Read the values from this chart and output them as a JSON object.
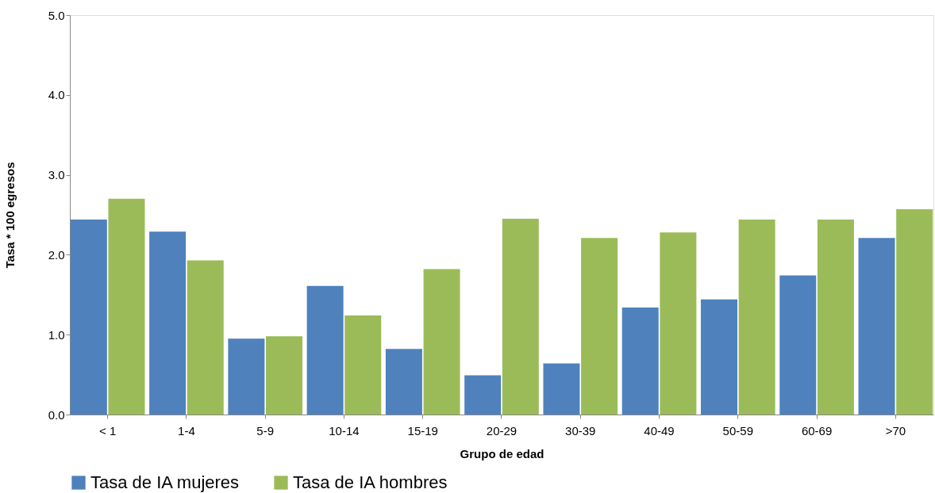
{
  "chart_data": {
    "type": "bar",
    "xlabel": "Grupo de edad",
    "ylabel": "Tasa * 100 egresos",
    "categories": [
      "< 1",
      "1-4",
      "5-9",
      "10-14",
      "15-19",
      "20-29",
      "30-39",
      "40-49",
      "50-59",
      "60-69",
      ">70"
    ],
    "series": [
      {
        "name": "Tasa de IA mujeres",
        "color": "#4f81bd",
        "values": [
          2.44,
          2.29,
          0.95,
          1.61,
          0.82,
          0.49,
          0.64,
          1.34,
          1.44,
          1.74,
          2.21
        ]
      },
      {
        "name": "Tasa de IA hombres",
        "color": "#9bbb59",
        "values": [
          2.7,
          1.93,
          0.98,
          1.24,
          1.82,
          2.45,
          2.21,
          2.28,
          2.44,
          2.44,
          2.57
        ]
      }
    ],
    "ylim": [
      0,
      5
    ],
    "yticks": [
      {
        "value": 0,
        "label": "0.0"
      },
      {
        "value": 1,
        "label": "1.0"
      },
      {
        "value": 2,
        "label": "2.0"
      },
      {
        "value": 3,
        "label": "3.0"
      },
      {
        "value": 4,
        "label": "4.0"
      },
      {
        "value": 5,
        "label": "5.0"
      }
    ],
    "grid": false,
    "legend": "bottom"
  }
}
